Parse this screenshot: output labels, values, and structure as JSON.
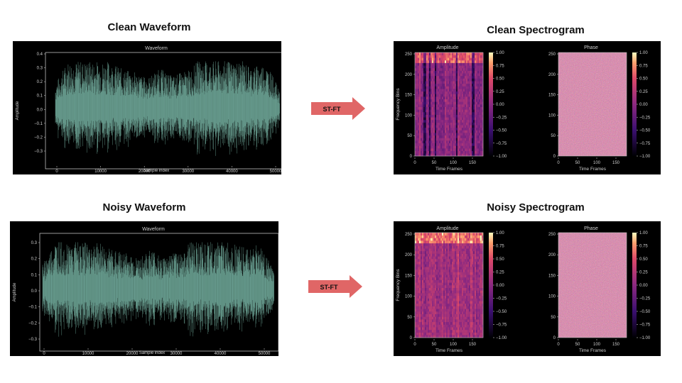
{
  "clean_waveform": {
    "title": "Clean Waveform",
    "plot_title": "Waveform",
    "xlabel": "Sample index",
    "ylabel": "Amplitude",
    "xticks": [
      "0",
      "10000",
      "20000",
      "30000",
      "40000",
      "50000"
    ],
    "yticks": [
      "0.4",
      "0.3",
      "0.2",
      "0.1",
      "0.0",
      "−0.1",
      "−0.2",
      "−0.3"
    ]
  },
  "noisy_waveform": {
    "title": "Noisy Waveform",
    "plot_title": "Waveform",
    "xlabel": "Sample index",
    "ylabel": "Amplitude",
    "xticks": [
      "0",
      "10000",
      "20000",
      "30000",
      "40000",
      "50000"
    ],
    "yticks": [
      "0.3",
      "0.2",
      "0.1",
      "0.0",
      "−0.1",
      "−0.2",
      "−0.3"
    ]
  },
  "clean_arrow": {
    "label": "ST-FT"
  },
  "noisy_arrow": {
    "label": "ST-FT"
  },
  "clean_spectrogram": {
    "title": "Clean Spectrogram",
    "amplitude": {
      "title": "Amplitude",
      "xlabel": "Time Frames",
      "ylabel": "Frequency Bins",
      "xticks": [
        "0",
        "50",
        "100",
        "150"
      ],
      "yticks": [
        "250",
        "200",
        "150",
        "100",
        "50",
        "0"
      ],
      "cbar_ticks": [
        "1.00",
        "0.75",
        "0.50",
        "0.25",
        "0.00",
        "−0.25",
        "−0.50",
        "−0.75",
        "−1.00"
      ]
    },
    "phase": {
      "title": "Phase",
      "xlabel": "Time Frames",
      "xticks": [
        "0",
        "50",
        "100",
        "150"
      ],
      "yticks": [
        "250",
        "200",
        "150",
        "100",
        "50",
        "0"
      ],
      "cbar_ticks": [
        "1.00",
        "0.75",
        "0.50",
        "0.25",
        "0.00",
        "−0.25",
        "−0.50",
        "−0.75",
        "−1.00"
      ]
    }
  },
  "noisy_spectrogram": {
    "title": "Noisy Spectrogram",
    "amplitude": {
      "title": "Amplitude",
      "xlabel": "Time Frames",
      "ylabel": "Frequency Bins",
      "xticks": [
        "0",
        "50",
        "100",
        "150"
      ],
      "yticks": [
        "250",
        "200",
        "150",
        "100",
        "50",
        "0"
      ],
      "cbar_ticks": [
        "1.00",
        "0.75",
        "0.50",
        "0.25",
        "0.00",
        "−0.25",
        "−0.50",
        "−0.75",
        "−1.00"
      ]
    },
    "phase": {
      "title": "Phase",
      "xlabel": "Time Frames",
      "xticks": [
        "0",
        "50",
        "100",
        "150"
      ],
      "yticks": [
        "250",
        "200",
        "150",
        "100",
        "50",
        "0"
      ],
      "cbar_ticks": [
        "1.00",
        "0.75",
        "0.50",
        "0.25",
        "0.00",
        "−0.25",
        "−0.50",
        "−0.75",
        "−1.00"
      ]
    }
  },
  "colors": {
    "waveform": "#8fd8c6",
    "arrow": "#e06666",
    "plot_bg": "#000000",
    "axis": "#bfbfbf"
  }
}
